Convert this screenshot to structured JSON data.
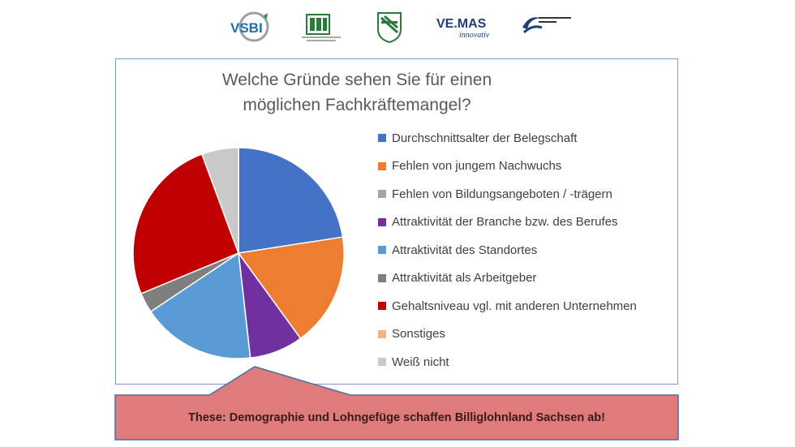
{
  "logos": [
    {
      "name": "vsbi-logo",
      "text": "VSBI",
      "color": "#1f6fb0"
    },
    {
      "name": "crest-logo-1",
      "text": "",
      "color": "#2a7a3a"
    },
    {
      "name": "crest-logo-2",
      "text": "",
      "color": "#2a7a3a"
    },
    {
      "name": "vemas-logo",
      "text": "VE.MAS",
      "subtext": "innovativ",
      "color": "#1f3f7a"
    },
    {
      "name": "kompetenzzentrum-logo",
      "text": "",
      "color": "#1f3f7a"
    }
  ],
  "chart_data": {
    "type": "pie",
    "title": [
      "Welche Gründe sehen Sie für einen",
      "möglichen Fachkräftemangel?"
    ],
    "legend_position": "right",
    "slices": [
      {
        "label": "Durchschnittsalter der Belegschaft",
        "value": 22,
        "color": "#4472c4"
      },
      {
        "label": "Fehlen von jungem Nachwuchs",
        "value": 17,
        "color": "#ed7d31"
      },
      {
        "label": "Fehlen von Bildungsangeboten / -trägern",
        "value": 0,
        "color": "#a5a5a5"
      },
      {
        "label": "Attraktivität der Branche bzw. des Berufes",
        "value": 8,
        "color": "#7030a0"
      },
      {
        "label": "Attraktivität des Standortes",
        "value": 17,
        "color": "#5b9bd5"
      },
      {
        "label": "Attraktivität als Arbeitgeber",
        "value": 3,
        "color": "#7f7f7f"
      },
      {
        "label": "Gehaltsniveau vgl. mit anderen Unternehmen",
        "value": 25,
        "color": "#c00000"
      },
      {
        "label": "Sonstiges",
        "value": 0,
        "color": "#f4b183"
      },
      {
        "label": "Weiß nicht",
        "value": 5.5,
        "color": "#c9c9c9"
      }
    ]
  },
  "thesis": {
    "text": "These: Demographie und Lohngefüge schaffen Billiglohnland Sachsen ab!",
    "fill": "#e07b7b",
    "border": "#4a6fa5"
  }
}
